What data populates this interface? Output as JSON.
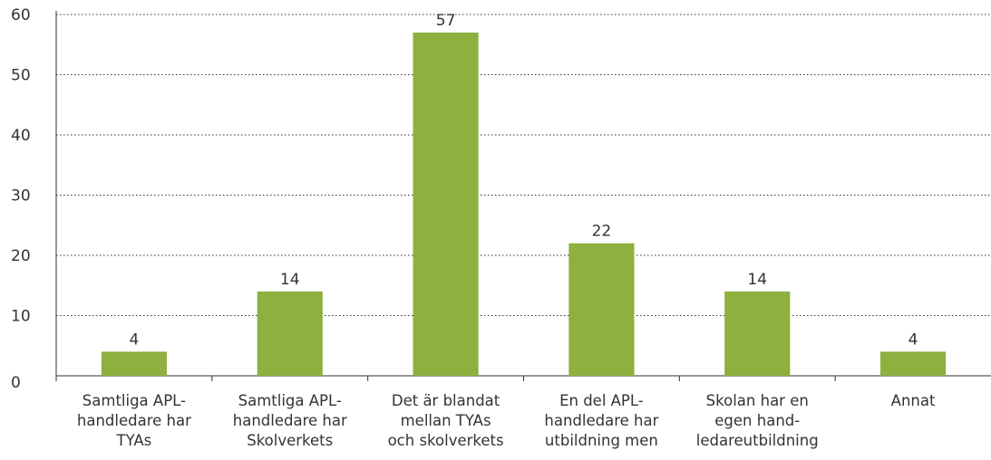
{
  "chart_data": {
    "type": "bar",
    "categories": [
      "Samtliga APL-\nhandledare har\nTYAs",
      "Samtliga APL-\nhandledare har\nSkolverkets",
      "Det är blandat\nmellan TYAs\noch skolverkets",
      "En del APL-\nhandledare har\nutbildning men",
      "Skolan har en\negen hand-\nledareutbildning",
      "Annat"
    ],
    "values": [
      4,
      14,
      57,
      22,
      14,
      4
    ],
    "color": "#8db03e",
    "ylim": [
      0,
      60
    ],
    "yticks": [
      0,
      10,
      20,
      30,
      40,
      50,
      60
    ],
    "grid": true
  }
}
